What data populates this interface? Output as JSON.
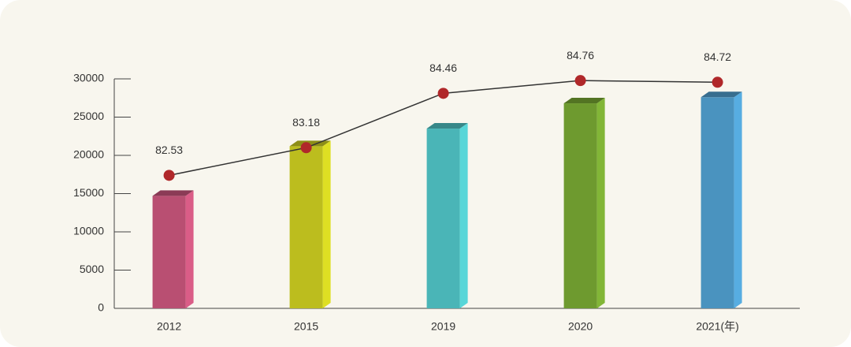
{
  "chart_data": {
    "type": "bar",
    "categories": [
      "2012",
      "2015",
      "2019",
      "2020",
      "2021(年)"
    ],
    "series": [
      {
        "type": "bar",
        "values": [
          14700,
          21200,
          23500,
          26800,
          27600
        ],
        "colors": [
          "#b94f72",
          "#bcbd1e",
          "#4ab5b7",
          "#6e9a2f",
          "#4a93bf"
        ]
      },
      {
        "type": "line",
        "axis": "y2",
        "values": [
          82.53,
          83.18,
          84.46,
          84.76,
          84.72
        ],
        "color": "#333333",
        "marker_color": "#b0282a"
      }
    ],
    "ylim": [
      0,
      30000
    ],
    "yticks": [
      0,
      5000,
      10000,
      15000,
      20000,
      25000,
      30000
    ],
    "y2lim": [
      79.4,
      84.8
    ]
  }
}
